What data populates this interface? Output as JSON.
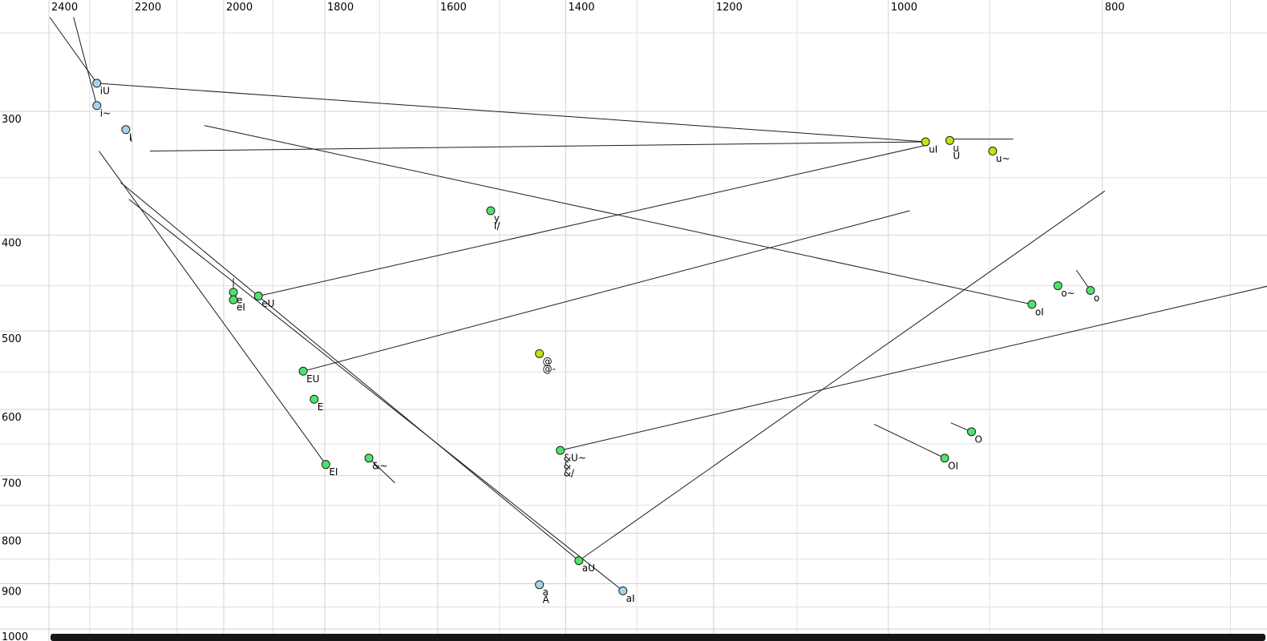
{
  "chart_data": {
    "type": "scatter",
    "title": "",
    "description": "Vowel formant plot (F2 horizontal reversed log scale, F1 vertical log scale) with diphthong trajectory lines",
    "x_axis": {
      "label": "",
      "scale": "log",
      "reversed": true,
      "major_ticks": [
        2400,
        2200,
        2000,
        1800,
        1600,
        1400,
        1200,
        1000,
        800
      ],
      "minor_ticks": [
        2300,
        2100,
        1900,
        1700,
        1500,
        1300,
        1100,
        900,
        700
      ],
      "range": [
        2526,
        674
      ]
    },
    "y_axis": {
      "label": "",
      "scale": "log",
      "reversed": false,
      "major_ticks": [
        300,
        400,
        500,
        600,
        700,
        800,
        900,
        1000
      ],
      "minor_ticks": [
        250,
        350,
        450,
        550,
        650,
        750,
        850,
        950
      ],
      "range": [
        245,
        1028
      ]
    },
    "grid": {
      "major_color": "#d2d2d2",
      "minor_color": "#e0e0e0"
    },
    "line_color": "#1c1c1c",
    "colors": {
      "blue": "#a4d4ef",
      "green": "#4de36e",
      "yellowgreen": "#c9e011",
      "stroke": "#1f1f1f"
    },
    "points": [
      {
        "id": "iU",
        "labels": [
          "iU"
        ],
        "f2": 2283,
        "f1": 281,
        "color": "blue"
      },
      {
        "id": "i~",
        "labels": [
          "i~"
        ],
        "f2": 2283,
        "f1": 296,
        "color": "blue"
      },
      {
        "id": "I",
        "labels": [
          "I"
        ],
        "f2": 2215,
        "f1": 313,
        "color": "blue"
      },
      {
        "id": "uI",
        "labels": [
          "uI"
        ],
        "f2": 962,
        "f1": 322,
        "color": "yellowgreen"
      },
      {
        "id": "u",
        "labels": [
          "u",
          "U"
        ],
        "f2": 938,
        "f1": 321,
        "color": "yellowgreen"
      },
      {
        "id": "u~",
        "labels": [
          "u~"
        ],
        "f2": 897,
        "f1": 329,
        "color": "yellowgreen"
      },
      {
        "id": "y",
        "labels": [
          "y",
          "I/"
        ],
        "f2": 1514,
        "f1": 378,
        "color": "green"
      },
      {
        "id": "e",
        "labels": [
          "e"
        ],
        "f2": 1980,
        "f1": 457,
        "color": "green"
      },
      {
        "id": "eI",
        "labels": [
          "eI"
        ],
        "f2": 1980,
        "f1": 465,
        "color": "green"
      },
      {
        "id": "eU",
        "labels": [
          "eU"
        ],
        "f2": 1929,
        "f1": 461,
        "color": "green"
      },
      {
        "id": "EU",
        "labels": [
          "EU"
        ],
        "f2": 1841,
        "f1": 549,
        "color": "green"
      },
      {
        "id": "E",
        "labels": [
          "E"
        ],
        "f2": 1820,
        "f1": 586,
        "color": "green"
      },
      {
        "id": "EI",
        "labels": [
          "EI"
        ],
        "f2": 1798,
        "f1": 682,
        "color": "green"
      },
      {
        "id": "&~",
        "labels": [
          "&~"
        ],
        "f2": 1719,
        "f1": 672,
        "color": "green"
      },
      {
        "id": "@",
        "labels": [
          "@",
          "@-"
        ],
        "f2": 1439,
        "f1": 527,
        "color": "yellowgreen"
      },
      {
        "id": "&U~",
        "labels": [
          "&U~",
          "&",
          "&/"
        ],
        "f2": 1408,
        "f1": 660,
        "color": "green"
      },
      {
        "id": "o~",
        "labels": [
          "o~"
        ],
        "f2": 838,
        "f1": 450,
        "color": "green"
      },
      {
        "id": "o",
        "labels": [
          "o"
        ],
        "f2": 810,
        "f1": 455,
        "color": "green"
      },
      {
        "id": "oI",
        "labels": [
          "oI"
        ],
        "f2": 861,
        "f1": 470,
        "color": "green"
      },
      {
        "id": "O",
        "labels": [
          "O"
        ],
        "f2": 917,
        "f1": 632,
        "color": "green"
      },
      {
        "id": "OI",
        "labels": [
          "OI"
        ],
        "f2": 943,
        "f1": 672,
        "color": "green"
      },
      {
        "id": "aU",
        "labels": [
          "aU"
        ],
        "f2": 1381,
        "f1": 853,
        "color": "green"
      },
      {
        "id": "a",
        "labels": [
          "a",
          "A"
        ],
        "f2": 1439,
        "f1": 902,
        "color": "blue"
      },
      {
        "id": "aI",
        "labels": [
          "aI"
        ],
        "f2": 1319,
        "f1": 915,
        "color": "blue"
      }
    ],
    "trajectories": [
      {
        "name": "into-iU",
        "from": [
          2398,
          241
        ],
        "to": [
          2283,
          281
        ]
      },
      {
        "name": "into-i~",
        "from": [
          2339,
          241
        ],
        "to": [
          2283,
          296
        ]
      },
      {
        "name": "iU-to-uI",
        "from": [
          2283,
          281
        ],
        "to": [
          962,
          322
        ]
      },
      {
        "name": "to-uI-2",
        "from": [
          2160,
          329
        ],
        "to": [
          962,
          322
        ]
      },
      {
        "name": "eU-line",
        "from": [
          1929,
          461
        ],
        "to": [
          964,
          325
        ]
      },
      {
        "name": "EU-line",
        "from": [
          1841,
          549
        ],
        "to": [
          978,
          378
        ]
      },
      {
        "name": "to-oI",
        "from": [
          2041,
          310
        ],
        "to": [
          861,
          470
        ]
      },
      {
        "name": "to-EI",
        "from": [
          2278,
          329
        ],
        "to": [
          1798,
          682
        ]
      },
      {
        "name": "to-aU",
        "from": [
          2227,
          354
        ],
        "to": [
          1381,
          853
        ]
      },
      {
        "name": "to-aI",
        "from": [
          2208,
          368
        ],
        "to": [
          1319,
          915
        ]
      },
      {
        "name": "aU-up",
        "from": [
          1381,
          853
        ],
        "to": [
          798,
          361
        ]
      },
      {
        "name": "&U~-line",
        "from": [
          1408,
          660
        ],
        "to": [
          672,
          450
        ]
      },
      {
        "name": "&~-line",
        "from": [
          1719,
          672
        ],
        "to": [
          1673,
          712
        ]
      },
      {
        "name": "into-o",
        "from": [
          822,
          434
        ],
        "to": [
          810,
          455
        ]
      },
      {
        "name": "into-O",
        "from": [
          937,
          619
        ],
        "to": [
          917,
          632
        ]
      },
      {
        "name": "into-OI",
        "from": [
          1015,
          621
        ],
        "to": [
          943,
          672
        ]
      },
      {
        "name": "u-line",
        "from": [
          938,
          320
        ],
        "to": [
          878,
          320
        ]
      },
      {
        "name": "e-stem",
        "from": [
          1980,
          442
        ],
        "to": [
          1980,
          456
        ]
      },
      {
        "name": "I-stub",
        "from": [
          2204,
          318
        ],
        "to": [
          2202,
          322
        ]
      }
    ]
  },
  "bottom_bar": {
    "visible": true,
    "color": "#161616"
  }
}
